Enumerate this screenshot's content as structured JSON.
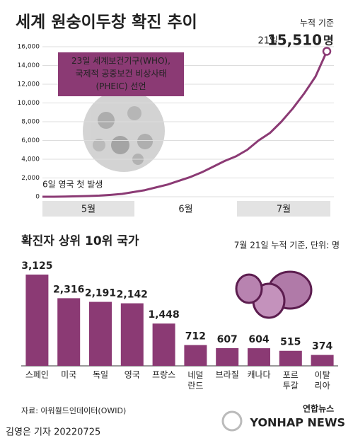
{
  "title": "세계 원숭이두창 확진 추이",
  "source": "자료: 아워월드인데이터(OWID)",
  "credit": "김영은 기자 20220725",
  "logo": {
    "ko": "연합뉴스",
    "en": "YONHAP NEWS"
  },
  "chart_data": [
    {
      "type": "line",
      "note": "누적 기준",
      "annotations": {
        "who": "23일 세계보건기구(WHO),\n국제적 공중보건 비상사태\n(PHEIC) 선언",
        "first": "6일 영국 첫 발생",
        "last_day": "21일",
        "last_unit": "명"
      },
      "months": [
        "5월",
        "6월",
        "7월"
      ],
      "values": [
        0,
        0,
        20,
        50,
        80,
        120,
        200,
        300,
        500,
        700,
        1000,
        1300,
        1700,
        2100,
        2600,
        3200,
        3800,
        4300,
        5000,
        6000,
        6800,
        8000,
        9400,
        11000,
        12800,
        15510
      ],
      "value_labels": [
        null,
        null,
        null,
        null,
        null,
        null,
        null,
        null,
        null,
        null,
        null,
        null,
        null,
        null,
        null,
        null,
        null,
        null,
        null,
        null,
        null,
        null,
        null,
        null,
        null,
        "15,510"
      ],
      "color": "#8b3a74",
      "ylim": [
        0,
        16000
      ],
      "yticks": [
        0,
        {
          "value": 2000,
          "label": "2,000"
        },
        {
          "value": 4000,
          "label": "4,000"
        },
        {
          "value": 6000,
          "label": "6,000"
        },
        {
          "value": 8000,
          "label": "8,000"
        },
        {
          "value": 10000,
          "label": "10,000"
        },
        {
          "value": 12000,
          "label": "12,000"
        },
        {
          "value": 14000,
          "label": "14,000"
        },
        {
          "value": 16000,
          "label": "16,000"
        }
      ],
      "grid": true
    },
    {
      "type": "bar",
      "title": "확진자 상위 10위 국가",
      "note": "7월 21일 누적 기준, 단위: 명",
      "categories": [
        "스페인",
        "미국",
        "독일",
        "영국",
        "프랑스",
        "네덜\n란드",
        "브라질",
        "캐나다",
        "포르\n투갈",
        "이탈\n리아"
      ],
      "values": [
        3125,
        2316,
        2191,
        2142,
        1448,
        712,
        607,
        604,
        515,
        374
      ],
      "value_labels": [
        "3,125",
        "2,316",
        "2,191",
        "2,142",
        "1,448",
        "712",
        "607",
        "604",
        "515",
        "374"
      ],
      "color": "#8b3a74"
    }
  ]
}
